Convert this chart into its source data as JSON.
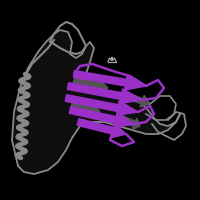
{
  "background_color": "#000000",
  "gray_color": "#888888",
  "purple_color": "#9B30C8",
  "gray_strand_color": "#606060",
  "figsize": [
    2.0,
    2.0
  ],
  "dpi": 100
}
